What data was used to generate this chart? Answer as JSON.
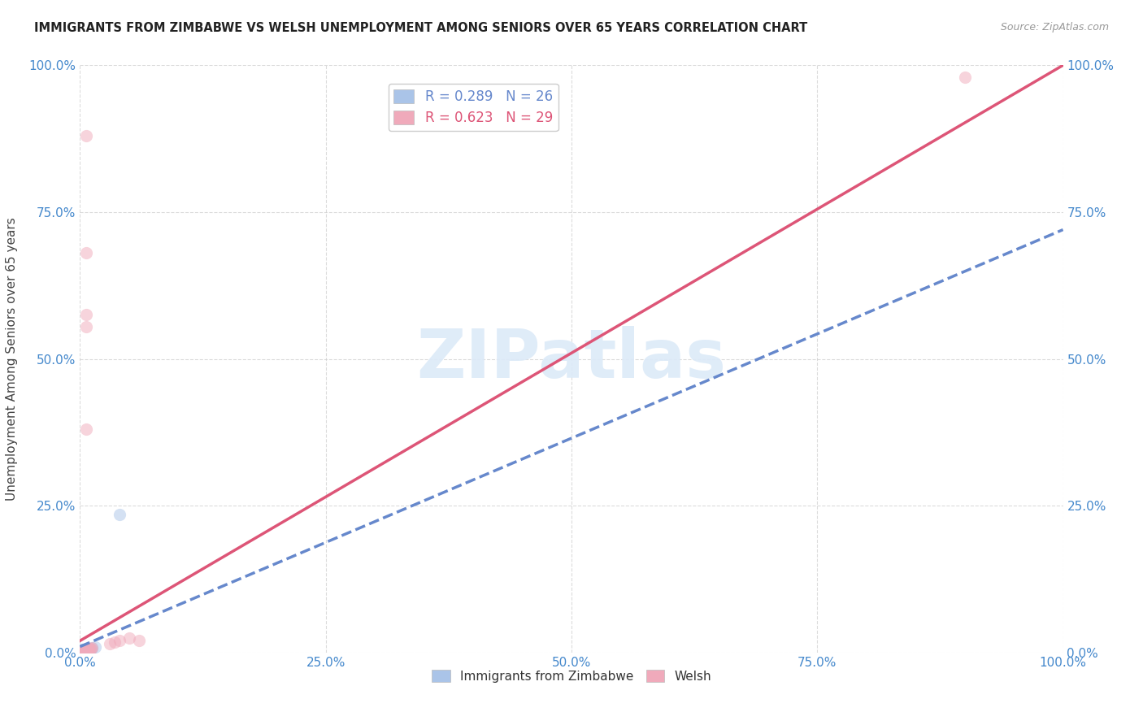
{
  "title": "IMMIGRANTS FROM ZIMBABWE VS WELSH UNEMPLOYMENT AMONG SENIORS OVER 65 YEARS CORRELATION CHART",
  "source": "Source: ZipAtlas.com",
  "ylabel": "Unemployment Among Seniors over 65 years",
  "r_blue": 0.289,
  "n_blue": 26,
  "r_pink": 0.623,
  "n_pink": 29,
  "blue_color": "#aac4e8",
  "pink_color": "#f0aabb",
  "blue_line_color": "#6688cc",
  "pink_line_color": "#dd5577",
  "watermark_text": "ZIPatlas",
  "watermark_color": "#dceaf8",
  "blue_dots": [
    [
      0.002,
      0.003
    ],
    [
      0.003,
      0.002
    ],
    [
      0.002,
      0.004
    ],
    [
      0.003,
      0.003
    ],
    [
      0.004,
      0.002
    ],
    [
      0.002,
      0.005
    ],
    [
      0.004,
      0.003
    ],
    [
      0.003,
      0.004
    ],
    [
      0.005,
      0.002
    ],
    [
      0.003,
      0.005
    ],
    [
      0.004,
      0.004
    ],
    [
      0.005,
      0.003
    ],
    [
      0.006,
      0.003
    ],
    [
      0.004,
      0.005
    ],
    [
      0.006,
      0.004
    ],
    [
      0.005,
      0.005
    ],
    [
      0.007,
      0.004
    ],
    [
      0.006,
      0.005
    ],
    [
      0.007,
      0.005
    ],
    [
      0.008,
      0.004
    ],
    [
      0.008,
      0.005
    ],
    [
      0.009,
      0.005
    ],
    [
      0.01,
      0.005
    ],
    [
      0.04,
      0.235
    ],
    [
      0.012,
      0.008
    ],
    [
      0.015,
      0.01
    ]
  ],
  "pink_dots": [
    [
      0.002,
      0.002
    ],
    [
      0.003,
      0.002
    ],
    [
      0.003,
      0.003
    ],
    [
      0.004,
      0.003
    ],
    [
      0.004,
      0.004
    ],
    [
      0.005,
      0.003
    ],
    [
      0.005,
      0.004
    ],
    [
      0.006,
      0.004
    ],
    [
      0.006,
      0.005
    ],
    [
      0.007,
      0.005
    ],
    [
      0.007,
      0.006
    ],
    [
      0.008,
      0.005
    ],
    [
      0.008,
      0.006
    ],
    [
      0.009,
      0.006
    ],
    [
      0.009,
      0.007
    ],
    [
      0.01,
      0.007
    ],
    [
      0.011,
      0.007
    ],
    [
      0.012,
      0.008
    ],
    [
      0.03,
      0.015
    ],
    [
      0.035,
      0.018
    ],
    [
      0.04,
      0.02
    ],
    [
      0.05,
      0.025
    ],
    [
      0.06,
      0.02
    ],
    [
      0.006,
      0.38
    ],
    [
      0.006,
      0.555
    ],
    [
      0.006,
      0.575
    ],
    [
      0.006,
      0.68
    ],
    [
      0.006,
      0.88
    ],
    [
      0.9,
      0.98
    ]
  ],
  "blue_line": [
    [
      0.0,
      0.01
    ],
    [
      1.0,
      0.72
    ]
  ],
  "pink_line": [
    [
      0.0,
      0.02
    ],
    [
      1.0,
      1.0
    ]
  ],
  "xticks": [
    0.0,
    0.25,
    0.5,
    0.75,
    1.0
  ],
  "yticks": [
    0.0,
    0.25,
    0.5,
    0.75,
    1.0
  ],
  "xtick_labels": [
    "0.0%",
    "25.0%",
    "50.0%",
    "75.0%",
    "100.0%"
  ],
  "ytick_labels": [
    "0.0%",
    "25.0%",
    "50.0%",
    "75.0%",
    "100.0%"
  ],
  "right_ytick_labels": [
    "0.0%",
    "25.0%",
    "50.0%",
    "75.0%",
    "100.0%"
  ],
  "xlim": [
    0.0,
    1.0
  ],
  "ylim": [
    0.0,
    1.0
  ],
  "background_color": "#ffffff",
  "grid_color": "#cccccc",
  "title_color": "#222222",
  "axis_label_color": "#444444",
  "tick_color": "#4488cc",
  "dot_size": 120,
  "dot_alpha": 0.5,
  "line_width": 2.5
}
